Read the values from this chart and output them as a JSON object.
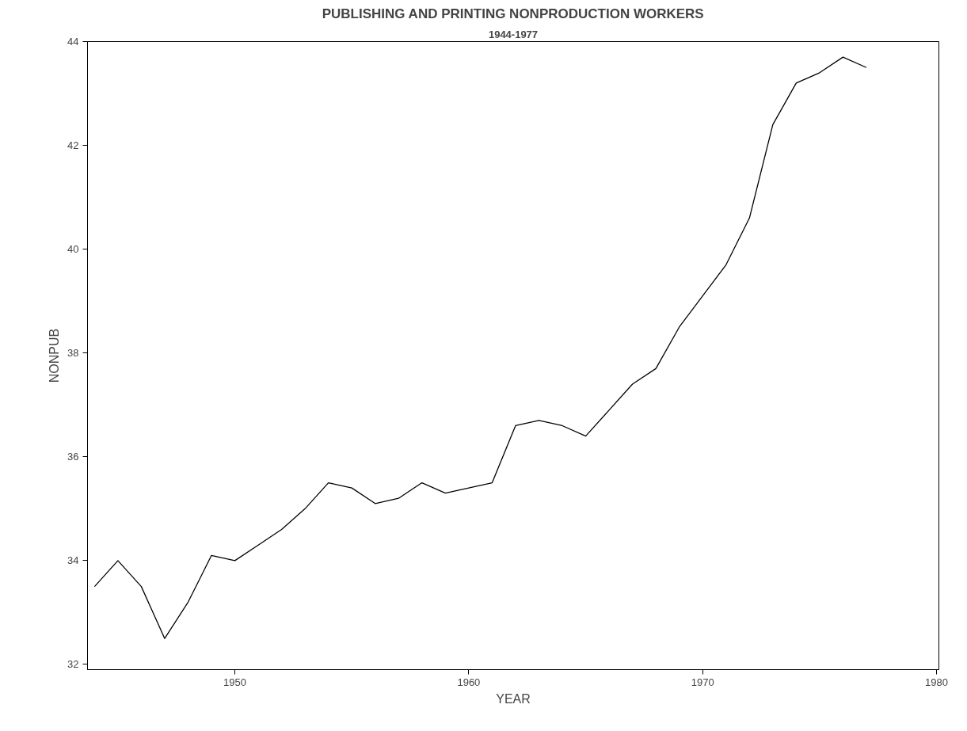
{
  "chart_data": {
    "type": "line",
    "title": "PUBLISHING AND PRINTING NONPRODUCTION WORKERS",
    "subtitle": "1944-1977",
    "xlabel": "YEAR",
    "ylabel": "NONPUB",
    "x": [
      1944,
      1945,
      1946,
      1947,
      1948,
      1949,
      1950,
      1951,
      1952,
      1953,
      1954,
      1955,
      1956,
      1957,
      1958,
      1959,
      1960,
      1961,
      1962,
      1963,
      1964,
      1965,
      1966,
      1967,
      1968,
      1969,
      1970,
      1971,
      1972,
      1973,
      1974,
      1975,
      1976,
      1977
    ],
    "series": [
      {
        "color": "#000000",
        "values": [
          33.5,
          34.0,
          33.5,
          32.5,
          33.2,
          34.1,
          34.0,
          34.3,
          34.6,
          35.0,
          35.5,
          35.4,
          35.1,
          35.2,
          35.5,
          35.3,
          35.4,
          35.5,
          36.6,
          36.7,
          36.6,
          36.4,
          36.9,
          37.4,
          37.7,
          38.5,
          39.1,
          39.7,
          40.6,
          42.4,
          43.2,
          43.4,
          43.7,
          43.5
        ]
      }
    ],
    "xlim": [
      1943.7,
      1980.1
    ],
    "ylim": [
      31.9,
      44
    ],
    "xticks": [
      1950,
      1960,
      1970,
      1980
    ],
    "yticks": [
      32,
      34,
      36,
      38,
      40,
      42,
      44
    ],
    "grid": false,
    "marker": "none",
    "line_style": "solid"
  }
}
